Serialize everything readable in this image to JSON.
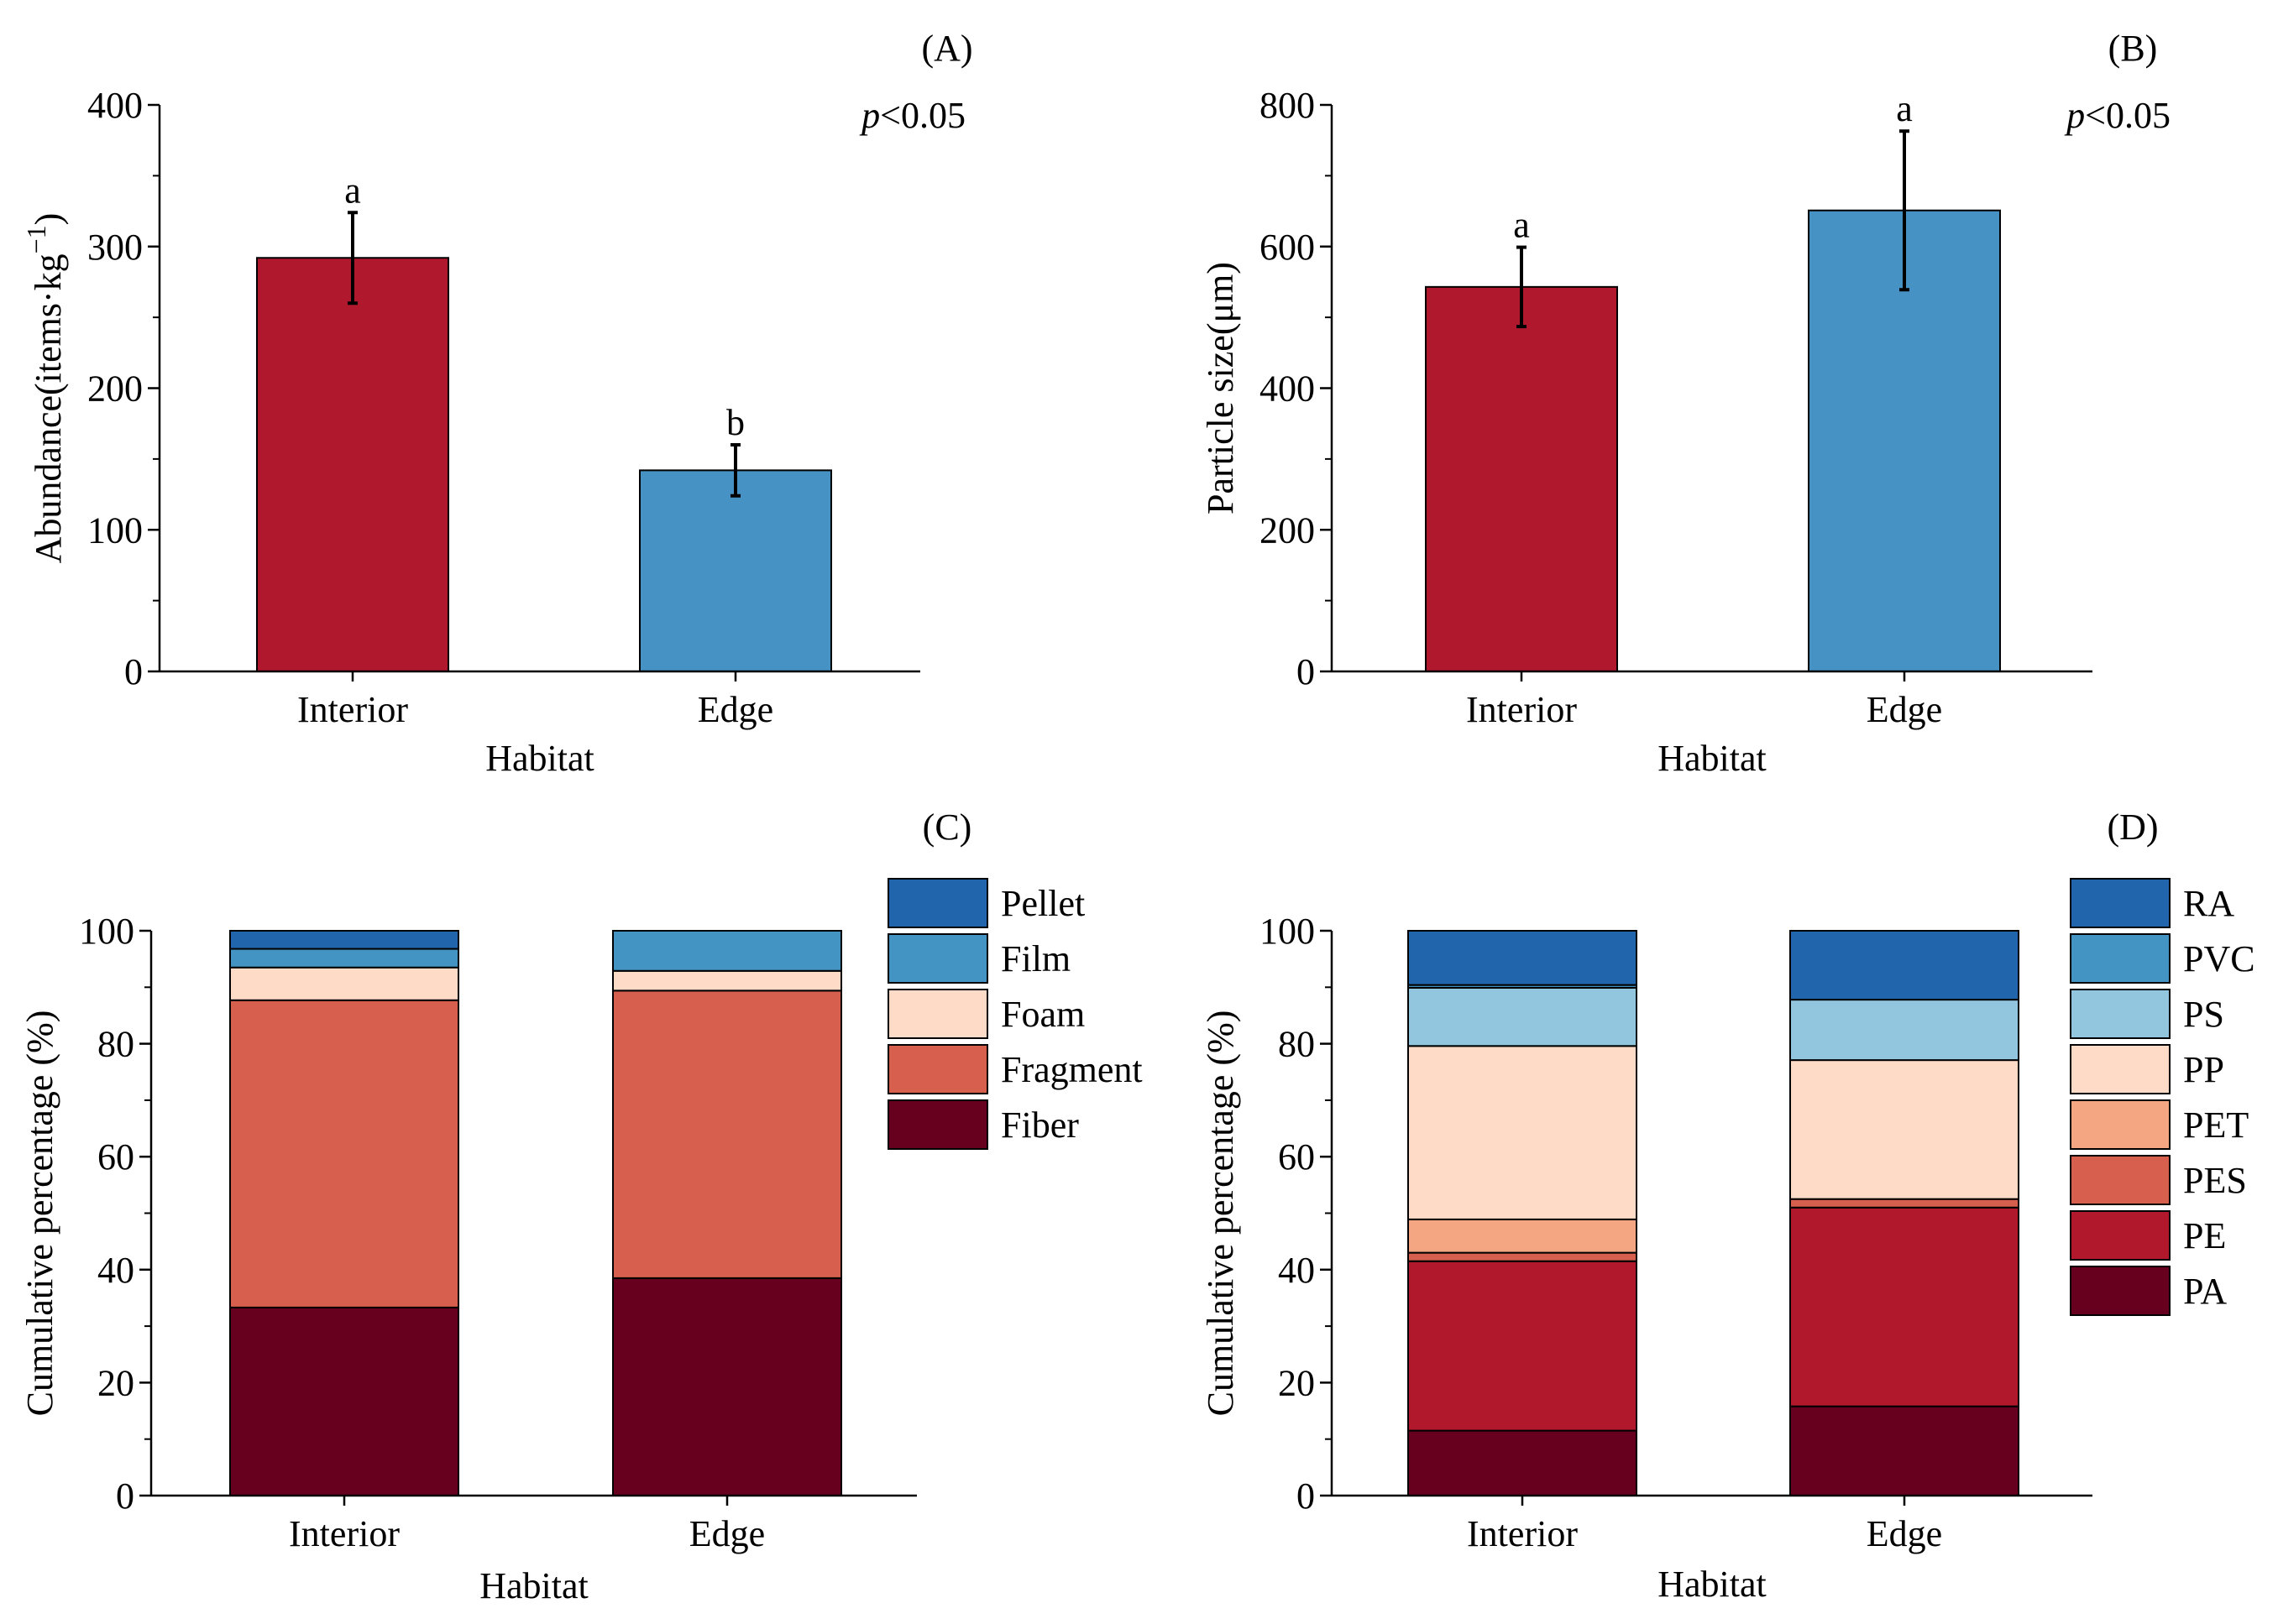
{
  "colors": {
    "interior": "#B0182E",
    "edge": "#4692C4",
    "axis": "#000000"
  },
  "chart_data": [
    {
      "id": "A",
      "type": "bar",
      "panel_label": "(A)",
      "xlabel": "Habitat",
      "ylabel": "Abundance(items·kg",
      "ylabel_sup": "−1",
      "ylabel_close": ")",
      "ylim": [
        0,
        400
      ],
      "yticks": [
        0,
        100,
        200,
        300,
        400
      ],
      "categories": [
        "Interior",
        "Edge"
      ],
      "values": [
        292,
        142
      ],
      "errors": [
        32,
        18
      ],
      "letters": [
        "a",
        "b"
      ],
      "p_italic": "p",
      "p_rest": "<0.05"
    },
    {
      "id": "B",
      "type": "bar",
      "panel_label": "(B)",
      "xlabel": "Habitat",
      "ylabel": "Particle size(μm)",
      "ylim": [
        0,
        800
      ],
      "yticks": [
        0,
        200,
        400,
        600,
        800
      ],
      "categories": [
        "Interior",
        "Edge"
      ],
      "values": [
        543,
        651
      ],
      "errors": [
        56,
        112
      ],
      "letters": [
        "a",
        "a"
      ],
      "p_italic": "p",
      "p_rest": "<0.05"
    },
    {
      "id": "C",
      "type": "bar",
      "stacked": true,
      "panel_label": "(C)",
      "xlabel": "Habitat",
      "ylabel": "Cumulative percentage (%)",
      "ylim": [
        0,
        100
      ],
      "yticks": [
        0,
        20,
        40,
        60,
        80,
        100
      ],
      "categories": [
        "Interior",
        "Edge"
      ],
      "series": [
        {
          "name": "Fiber",
          "color": "#67001F",
          "values": [
            33.3,
            38.5
          ]
        },
        {
          "name": "Fragment",
          "color": "#D6604D",
          "values": [
            54.4,
            50.9
          ]
        },
        {
          "name": "Foam",
          "color": "#FDDBC7",
          "values": [
            5.8,
            3.5
          ]
        },
        {
          "name": "Film",
          "color": "#4393C3",
          "values": [
            3.3,
            7.1
          ]
        },
        {
          "name": "Pellet",
          "color": "#2166AC",
          "values": [
            3.2,
            0
          ]
        }
      ],
      "legend_position": "right"
    },
    {
      "id": "D",
      "type": "bar",
      "stacked": true,
      "panel_label": "(D)",
      "xlabel": "Habitat",
      "ylabel": "Cumulative percentage (%)",
      "ylim": [
        0,
        100
      ],
      "yticks": [
        0,
        20,
        40,
        60,
        80,
        100
      ],
      "categories": [
        "Interior",
        "Edge"
      ],
      "series": [
        {
          "name": "PA",
          "color": "#67001F",
          "values": [
            11.5,
            15.8
          ]
        },
        {
          "name": "PE",
          "color": "#B2182B",
          "values": [
            30.0,
            35.2
          ]
        },
        {
          "name": "PES",
          "color": "#D6604D",
          "values": [
            1.5,
            1.5
          ]
        },
        {
          "name": "PET",
          "color": "#F4A582",
          "values": [
            5.9,
            0
          ]
        },
        {
          "name": "PP",
          "color": "#FDDBC7",
          "values": [
            30.7,
            24.6
          ]
        },
        {
          "name": "PS",
          "color": "#92C5DE",
          "values": [
            10.3,
            10.7
          ]
        },
        {
          "name": "PVC",
          "color": "#4393C3",
          "values": [
            0.5,
            0
          ]
        },
        {
          "name": "RA",
          "color": "#2166AC",
          "values": [
            9.6,
            12.2
          ]
        }
      ],
      "legend_position": "right"
    }
  ]
}
